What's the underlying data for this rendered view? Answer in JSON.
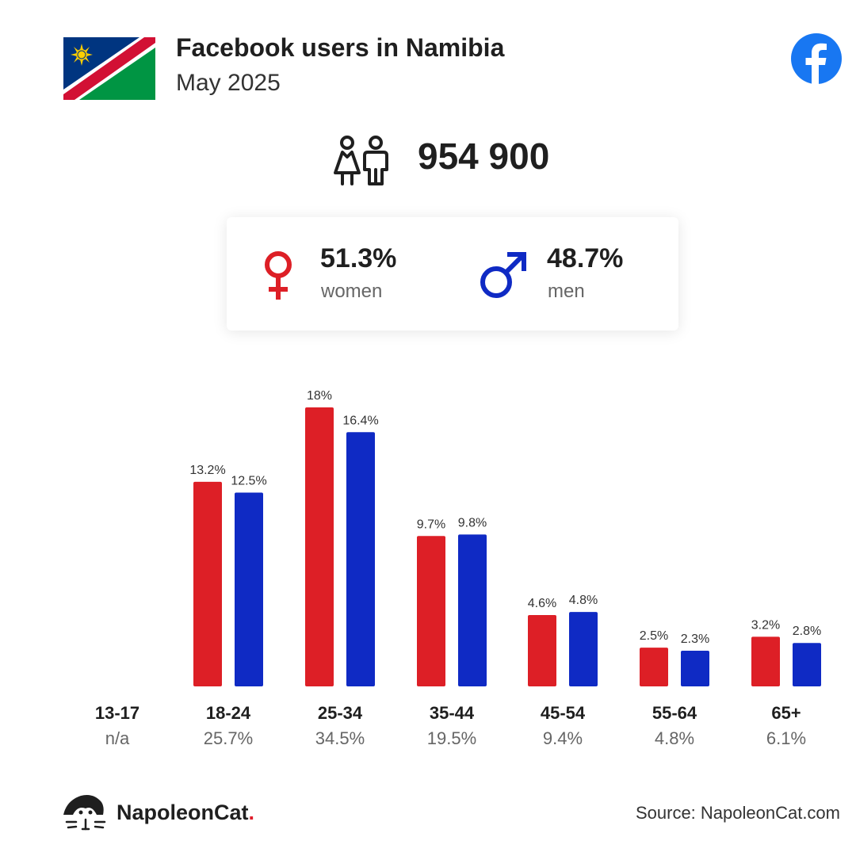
{
  "header": {
    "title": "Facebook users in Namibia",
    "subtitle": "May 2025",
    "flag_icon": "namibia-flag-icon",
    "logo_icon": "facebook-logo-icon"
  },
  "total": {
    "icon": "people-icon",
    "value": "954 900"
  },
  "gender": {
    "women": {
      "percent": "51.3%",
      "label": "women",
      "icon": "venus-icon"
    },
    "men": {
      "percent": "48.7%",
      "label": "men",
      "icon": "mars-icon"
    }
  },
  "colors": {
    "women": "#dd1f26",
    "men": "#0f2ac4",
    "flag_blue": "#003580",
    "flag_red": "#d21034",
    "flag_green": "#009543",
    "facebook": "#1877f2"
  },
  "chart_data": {
    "type": "bar",
    "categories": [
      "13-17",
      "18-24",
      "25-34",
      "35-44",
      "45-54",
      "55-64",
      "65+"
    ],
    "category_totals": [
      "n/a",
      "25.7%",
      "34.5%",
      "19.5%",
      "9.4%",
      "4.8%",
      "6.1%"
    ],
    "series": [
      {
        "key": "women",
        "values": [
          null,
          13.2,
          18,
          9.7,
          4.6,
          2.5,
          3.2
        ],
        "labels": [
          "",
          "13.2%",
          "18%",
          "9.7%",
          "4.6%",
          "2.5%",
          "3.2%"
        ]
      },
      {
        "key": "men",
        "values": [
          null,
          12.5,
          16.4,
          9.8,
          4.8,
          2.3,
          2.8
        ],
        "labels": [
          "",
          "12.5%",
          "16.4%",
          "9.8%",
          "4.8%",
          "2.3%",
          "2.8%"
        ]
      }
    ],
    "ylim": [
      0,
      18
    ]
  },
  "footer": {
    "brand_name": "NapoleonCat",
    "brand_dot": ".",
    "logo_icon": "napoleoncat-logo-icon",
    "source": "Source: NapoleonCat.com"
  }
}
